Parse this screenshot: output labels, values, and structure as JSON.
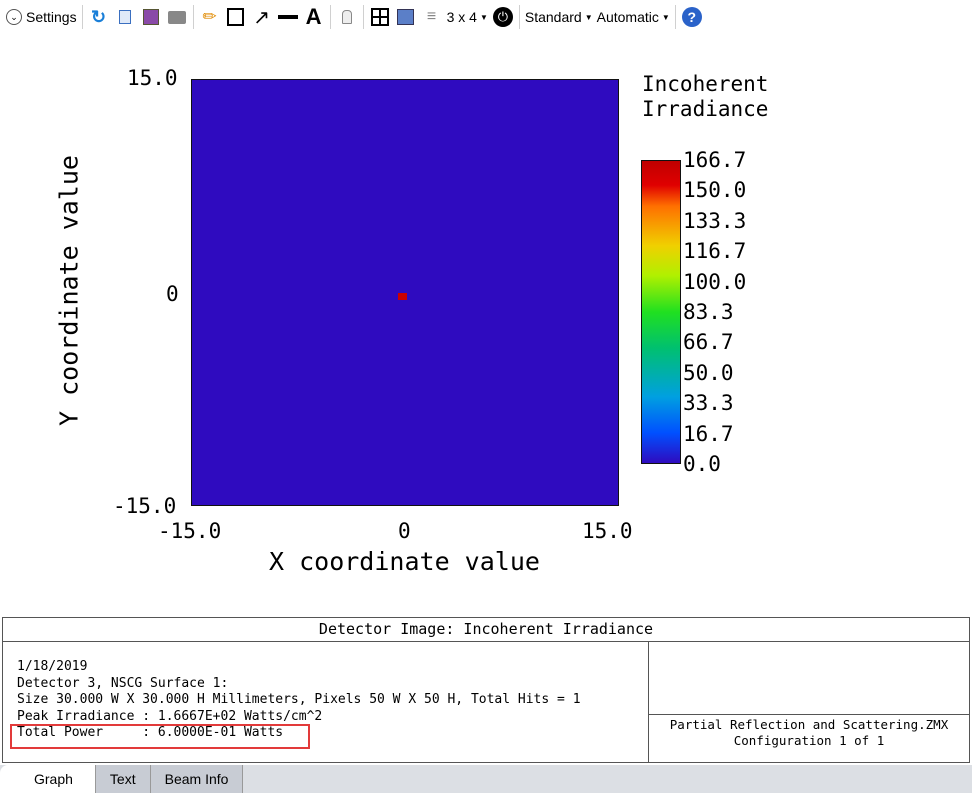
{
  "toolbar": {
    "settings_label": "Settings",
    "layout_label": "3 x 4",
    "standard_label": "Standard",
    "automatic_label": "Automatic",
    "icons": [
      "chevron-down-circle-icon",
      "refresh-icon",
      "copy-icon",
      "save-icon",
      "print-icon",
      "pencil-icon",
      "rectangle-icon",
      "arrow-icon",
      "line-icon",
      "text-icon",
      "lock-icon",
      "grid-icon",
      "window-icon",
      "layers-icon",
      "power-icon",
      "help-icon"
    ]
  },
  "chart_data": {
    "type": "heatmap",
    "title": "Incoherent Irradiance",
    "xlabel": "X coordinate value",
    "ylabel": "Y coordinate value",
    "xlim": [
      -15.0,
      15.0
    ],
    "ylim": [
      -15.0,
      15.0
    ],
    "x_ticks": [
      "-15.0",
      "0",
      "15.0"
    ],
    "y_ticks": [
      "15.0",
      "0",
      "-15.0"
    ],
    "colorbar_title": [
      "Incoherent",
      "Irradiance"
    ],
    "colorbar_ticks": [
      "166.7",
      "150.0",
      "133.3",
      "116.7",
      "100.0",
      "83.3",
      "66.7",
      "50.0",
      "33.3",
      "16.7",
      "0.0"
    ],
    "background_value": 0.0,
    "peak": {
      "x": -0.3,
      "y": -0.3,
      "value": 166.7
    },
    "colors": {
      "background": "#2f0bbf",
      "peak": "#cc0000"
    }
  },
  "info": {
    "title": "Detector Image: Incoherent Irradiance",
    "lines": [
      "1/18/2019",
      "Detector 3, NSCG Surface 1:",
      "Size 30.000 W X 30.000 H Millimeters, Pixels 50 W X 50 H, Total Hits = 1",
      "Peak Irradiance : 1.6667E+02 Watts/cm^2",
      "Total Power     : 6.0000E-01 Watts"
    ],
    "file": "Partial Reflection and Scattering.ZMX",
    "config": "Configuration 1 of 1"
  },
  "tabs": [
    {
      "label": "Graph",
      "active": true
    },
    {
      "label": "Text"
    },
    {
      "label": "Beam Info"
    }
  ]
}
